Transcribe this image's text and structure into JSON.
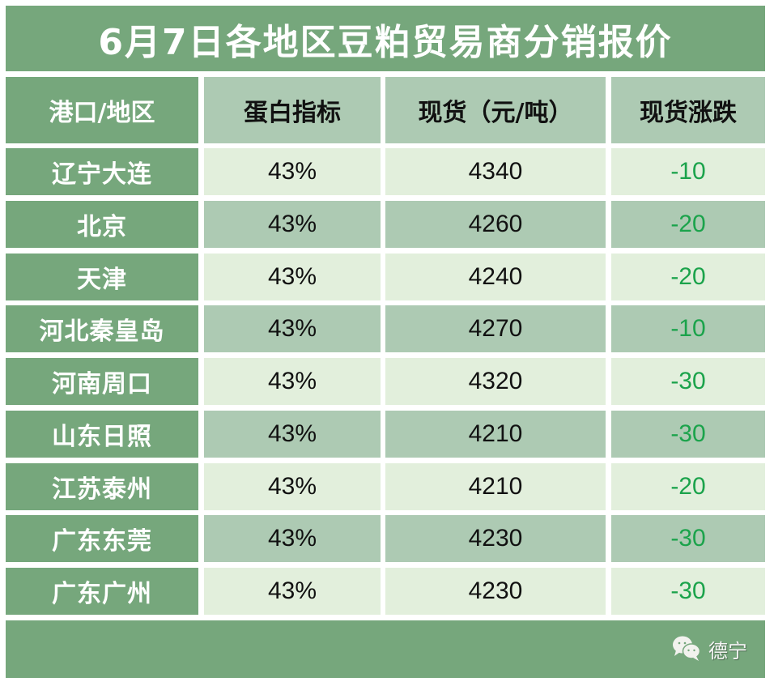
{
  "title": "6月7日各地区豆粕贸易商分销报价",
  "colors": {
    "header_dark": "#76a77c",
    "header_mid": "#adcab3",
    "row_light": "#e2efdc",
    "row_mid": "#adcab3",
    "change_green": "#1ba34b"
  },
  "table": {
    "columns": [
      "港口/地区",
      "蛋白指标",
      "现货（元/吨）",
      "现货涨跌"
    ],
    "rows": [
      {
        "region": "辽宁大连",
        "protein": "43%",
        "price": "4340",
        "change": "-10"
      },
      {
        "region": "北京",
        "protein": "43%",
        "price": "4260",
        "change": "-20"
      },
      {
        "region": "天津",
        "protein": "43%",
        "price": "4240",
        "change": "-20"
      },
      {
        "region": "河北秦皇岛",
        "protein": "43%",
        "price": "4270",
        "change": "-10"
      },
      {
        "region": "河南周口",
        "protein": "43%",
        "price": "4320",
        "change": "-30"
      },
      {
        "region": "山东日照",
        "protein": "43%",
        "price": "4210",
        "change": "-30"
      },
      {
        "region": "江苏泰州",
        "protein": "43%",
        "price": "4210",
        "change": "-20"
      },
      {
        "region": "广东东莞",
        "protein": "43%",
        "price": "4230",
        "change": "-30"
      },
      {
        "region": "广东广州",
        "protein": "43%",
        "price": "4230",
        "change": "-30"
      }
    ]
  },
  "footer": {
    "icon": "wechat-icon",
    "brand": "德宁"
  }
}
